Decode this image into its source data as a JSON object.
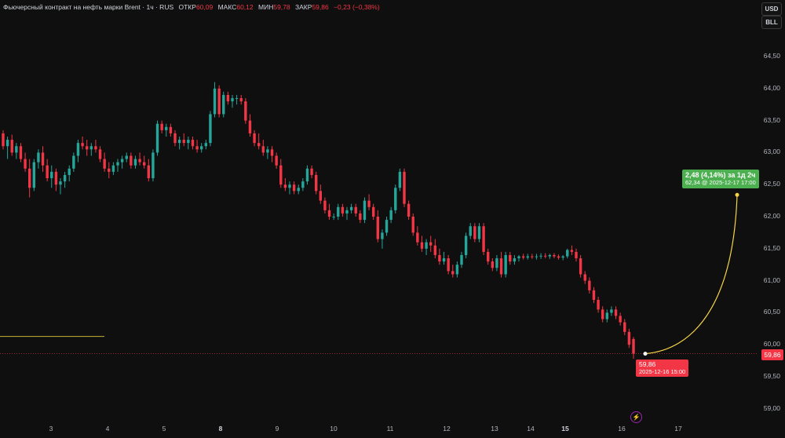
{
  "legend": {
    "title": "Фьючерсный контракт на нефть марки Brent · 1ч · RUS",
    "open_label": "ОТКР",
    "open": "60,09",
    "high_label": "МАКС",
    "high": "60,12",
    "low_label": "МИН",
    "low": "59,78",
    "close_label": "ЗАКР",
    "close": "59,86",
    "change": "−0,23 (−0,38%)"
  },
  "currency_buttons": [
    "USD",
    "BLL"
  ],
  "price_axis": [
    "64,50",
    "64,00",
    "63,50",
    "63,00",
    "62,50",
    "62,00",
    "61,50",
    "61,00",
    "60,50",
    "60,00",
    "59,50",
    "59,00"
  ],
  "time_axis": [
    {
      "label": "3",
      "bold": false
    },
    {
      "label": "4",
      "bold": false
    },
    {
      "label": "5",
      "bold": false
    },
    {
      "label": "8",
      "bold": true
    },
    {
      "label": "9",
      "bold": false
    },
    {
      "label": "10",
      "bold": false
    },
    {
      "label": "11",
      "bold": false
    },
    {
      "label": "12",
      "bold": false
    },
    {
      "label": "13",
      "bold": false
    },
    {
      "label": "14",
      "bold": false
    },
    {
      "label": "15",
      "bold": true
    },
    {
      "label": "16",
      "bold": false
    },
    {
      "label": "17",
      "bold": false
    }
  ],
  "current_price_tag": "59,86",
  "last_point_tag": {
    "price": "59,86",
    "time": "2025-12-16 15:00"
  },
  "projection_tag": {
    "line1": "2,48 (4,14%) за 1д 2ч",
    "line2": "62,34 @ 2025-12-17  17:00"
  },
  "colors": {
    "up": "#26a69a",
    "down": "#f23645",
    "projection": "#4caf50",
    "curve": "#f5d547",
    "bg": "#0f0f0f"
  },
  "chart_data": {
    "type": "candlestick",
    "title": "Фьючерсный контракт на нефть марки Brent · 1ч · RUS",
    "ylim": [
      58.9,
      64.85
    ],
    "x_ticks": [
      "3",
      "4",
      "5",
      "8",
      "9",
      "10",
      "11",
      "12",
      "13",
      "14",
      "15",
      "16",
      "17"
    ],
    "candles": [
      [
        63.3,
        63.35,
        63.05,
        63.1
      ],
      [
        63.1,
        63.25,
        62.9,
        63.2
      ],
      [
        63.2,
        63.28,
        62.95,
        63.0
      ],
      [
        63.0,
        63.15,
        62.9,
        63.1
      ],
      [
        63.1,
        63.15,
        62.85,
        62.9
      ],
      [
        62.9,
        63.0,
        62.7,
        62.75
      ],
      [
        62.75,
        62.9,
        62.3,
        62.45
      ],
      [
        62.45,
        62.9,
        62.4,
        62.85
      ],
      [
        62.85,
        63.05,
        62.75,
        63.0
      ],
      [
        63.0,
        63.1,
        62.7,
        62.8
      ],
      [
        62.8,
        62.9,
        62.55,
        62.6
      ],
      [
        62.6,
        62.8,
        62.45,
        62.7
      ],
      [
        62.7,
        62.75,
        62.4,
        62.5
      ],
      [
        62.5,
        62.6,
        62.35,
        62.55
      ],
      [
        62.55,
        62.7,
        62.45,
        62.65
      ],
      [
        62.65,
        62.8,
        62.55,
        62.75
      ],
      [
        62.75,
        63.0,
        62.7,
        62.95
      ],
      [
        62.95,
        63.2,
        62.85,
        63.15
      ],
      [
        63.15,
        63.25,
        63.05,
        63.1
      ],
      [
        63.1,
        63.2,
        62.95,
        63.05
      ],
      [
        63.05,
        63.15,
        62.95,
        63.1
      ],
      [
        63.1,
        63.2,
        63.0,
        63.05
      ],
      [
        63.05,
        63.1,
        62.85,
        62.9
      ],
      [
        62.9,
        63.0,
        62.7,
        62.75
      ],
      [
        62.75,
        62.85,
        62.6,
        62.7
      ],
      [
        62.7,
        62.85,
        62.65,
        62.8
      ],
      [
        62.8,
        62.9,
        62.7,
        62.85
      ],
      [
        62.85,
        62.95,
        62.75,
        62.9
      ],
      [
        62.9,
        63.0,
        62.85,
        62.95
      ],
      [
        62.95,
        63.0,
        62.75,
        62.8
      ],
      [
        62.8,
        62.95,
        62.75,
        62.9
      ],
      [
        62.9,
        63.0,
        62.8,
        62.85
      ],
      [
        62.85,
        62.95,
        62.75,
        62.8
      ],
      [
        62.8,
        62.9,
        62.55,
        62.6
      ],
      [
        62.6,
        63.05,
        62.55,
        63.0
      ],
      [
        63.0,
        63.5,
        62.95,
        63.45
      ],
      [
        63.45,
        63.5,
        63.3,
        63.35
      ],
      [
        63.35,
        63.45,
        63.25,
        63.4
      ],
      [
        63.4,
        63.45,
        63.25,
        63.3
      ],
      [
        63.3,
        63.35,
        63.1,
        63.15
      ],
      [
        63.15,
        63.25,
        63.05,
        63.2
      ],
      [
        63.2,
        63.3,
        63.1,
        63.15
      ],
      [
        63.15,
        63.25,
        63.05,
        63.2
      ],
      [
        63.2,
        63.25,
        63.05,
        63.1
      ],
      [
        63.1,
        63.2,
        63.0,
        63.05
      ],
      [
        63.05,
        63.15,
        63.0,
        63.1
      ],
      [
        63.1,
        63.2,
        63.05,
        63.15
      ],
      [
        63.15,
        63.65,
        63.1,
        63.6
      ],
      [
        63.6,
        64.1,
        63.55,
        64.0
      ],
      [
        64.0,
        64.05,
        63.55,
        63.6
      ],
      [
        63.6,
        63.95,
        63.55,
        63.9
      ],
      [
        63.9,
        63.95,
        63.75,
        63.8
      ],
      [
        63.8,
        63.9,
        63.7,
        63.85
      ],
      [
        63.85,
        63.9,
        63.75,
        63.85
      ],
      [
        63.85,
        63.9,
        63.75,
        63.8
      ],
      [
        63.8,
        63.85,
        63.45,
        63.5
      ],
      [
        63.5,
        63.6,
        63.25,
        63.3
      ],
      [
        63.3,
        63.35,
        63.1,
        63.15
      ],
      [
        63.15,
        63.3,
        63.05,
        63.1
      ],
      [
        63.1,
        63.2,
        62.95,
        63.0
      ],
      [
        63.0,
        63.1,
        62.9,
        63.05
      ],
      [
        63.05,
        63.1,
        62.85,
        62.95
      ],
      [
        62.95,
        63.0,
        62.75,
        62.8
      ],
      [
        62.8,
        62.9,
        62.45,
        62.5
      ],
      [
        62.5,
        62.6,
        62.4,
        62.45
      ],
      [
        62.45,
        62.55,
        62.35,
        62.5
      ],
      [
        62.5,
        62.55,
        62.35,
        62.4
      ],
      [
        62.4,
        62.5,
        62.35,
        62.45
      ],
      [
        62.45,
        62.6,
        62.4,
        62.55
      ],
      [
        62.55,
        62.8,
        62.5,
        62.75
      ],
      [
        62.75,
        62.8,
        62.6,
        62.65
      ],
      [
        62.65,
        62.7,
        62.35,
        62.4
      ],
      [
        62.4,
        62.5,
        62.2,
        62.25
      ],
      [
        62.25,
        62.3,
        62.05,
        62.1
      ],
      [
        62.1,
        62.2,
        61.95,
        62.0
      ],
      [
        62.0,
        62.05,
        61.95,
        62.0
      ],
      [
        62.0,
        62.2,
        61.95,
        62.15
      ],
      [
        62.15,
        62.2,
        62.0,
        62.05
      ],
      [
        62.05,
        62.15,
        61.95,
        62.1
      ],
      [
        62.1,
        62.2,
        62.05,
        62.15
      ],
      [
        62.15,
        62.2,
        62.0,
        62.05
      ],
      [
        62.05,
        62.1,
        61.9,
        61.95
      ],
      [
        61.95,
        62.3,
        61.9,
        62.25
      ],
      [
        62.25,
        62.35,
        62.1,
        62.15
      ],
      [
        62.15,
        62.2,
        61.95,
        62.0
      ],
      [
        62.0,
        62.1,
        61.6,
        61.65
      ],
      [
        61.65,
        61.8,
        61.5,
        61.75
      ],
      [
        61.75,
        62.0,
        61.7,
        61.95
      ],
      [
        61.95,
        62.15,
        61.9,
        62.1
      ],
      [
        62.1,
        62.5,
        62.05,
        62.45
      ],
      [
        62.45,
        62.75,
        62.4,
        62.7
      ],
      [
        62.7,
        62.75,
        62.15,
        62.2
      ],
      [
        62.2,
        62.25,
        61.95,
        62.0
      ],
      [
        62.0,
        62.05,
        61.7,
        61.75
      ],
      [
        61.75,
        61.85,
        61.55,
        61.6
      ],
      [
        61.6,
        61.7,
        61.45,
        61.5
      ],
      [
        61.5,
        61.65,
        61.4,
        61.6
      ],
      [
        61.6,
        61.7,
        61.45,
        61.55
      ],
      [
        61.55,
        61.65,
        61.35,
        61.4
      ],
      [
        61.4,
        61.5,
        61.25,
        61.3
      ],
      [
        61.3,
        61.45,
        61.25,
        61.35
      ],
      [
        61.35,
        61.4,
        61.1,
        61.15
      ],
      [
        61.15,
        61.25,
        61.05,
        61.1
      ],
      [
        61.1,
        61.3,
        61.05,
        61.25
      ],
      [
        61.25,
        61.45,
        61.2,
        61.4
      ],
      [
        61.4,
        61.75,
        61.35,
        61.7
      ],
      [
        61.7,
        61.9,
        61.65,
        61.85
      ],
      [
        61.85,
        61.9,
        61.6,
        61.65
      ],
      [
        61.65,
        61.9,
        61.6,
        61.85
      ],
      [
        61.85,
        61.9,
        61.4,
        61.45
      ],
      [
        61.45,
        61.5,
        61.25,
        61.3
      ],
      [
        61.3,
        61.35,
        61.15,
        61.2
      ],
      [
        61.2,
        61.4,
        61.15,
        61.35
      ],
      [
        61.35,
        61.45,
        61.05,
        61.1
      ],
      [
        61.1,
        61.45,
        61.05,
        61.4
      ],
      [
        61.4,
        61.45,
        61.25,
        61.3
      ],
      [
        61.3,
        61.4,
        61.25,
        61.35
      ],
      [
        61.35,
        61.4,
        61.3,
        61.38
      ],
      [
        61.38,
        61.42,
        61.33,
        61.36
      ],
      [
        61.36,
        61.42,
        61.33,
        61.38
      ],
      [
        61.38,
        61.42,
        61.34,
        61.37
      ],
      [
        61.37,
        61.42,
        61.33,
        61.38
      ],
      [
        61.38,
        61.43,
        61.34,
        61.39
      ],
      [
        61.39,
        61.43,
        61.35,
        61.38
      ],
      [
        61.38,
        61.42,
        61.34,
        61.4
      ],
      [
        61.4,
        61.43,
        61.35,
        61.38
      ],
      [
        61.38,
        61.41,
        61.33,
        61.36
      ],
      [
        61.36,
        61.4,
        61.32,
        61.38
      ],
      [
        61.38,
        61.5,
        61.35,
        61.48
      ],
      [
        61.48,
        61.55,
        61.4,
        61.45
      ],
      [
        61.45,
        61.5,
        61.3,
        61.35
      ],
      [
        61.35,
        61.4,
        61.05,
        61.1
      ],
      [
        61.1,
        61.15,
        60.95,
        61.0
      ],
      [
        61.0,
        61.05,
        60.8,
        60.85
      ],
      [
        60.85,
        60.9,
        60.65,
        60.7
      ],
      [
        60.7,
        60.75,
        60.5,
        60.55
      ],
      [
        60.55,
        60.6,
        60.35,
        60.4
      ],
      [
        60.4,
        60.55,
        60.35,
        60.5
      ],
      [
        60.5,
        60.6,
        60.45,
        60.55
      ],
      [
        60.55,
        60.6,
        60.4,
        60.45
      ],
      [
        60.45,
        60.5,
        60.3,
        60.35
      ],
      [
        60.35,
        60.4,
        60.15,
        60.2
      ],
      [
        60.2,
        60.25,
        59.95,
        60.0
      ],
      [
        60.09,
        60.12,
        59.78,
        59.86
      ]
    ],
    "reference_line": 60.13,
    "projection": {
      "from_price": 59.86,
      "from_time": "2025-12-16 15:00",
      "to_price": 62.34,
      "to_time": "2025-12-17 17:00",
      "change": "2,48 (4,14%)",
      "duration": "1д 2ч"
    }
  }
}
